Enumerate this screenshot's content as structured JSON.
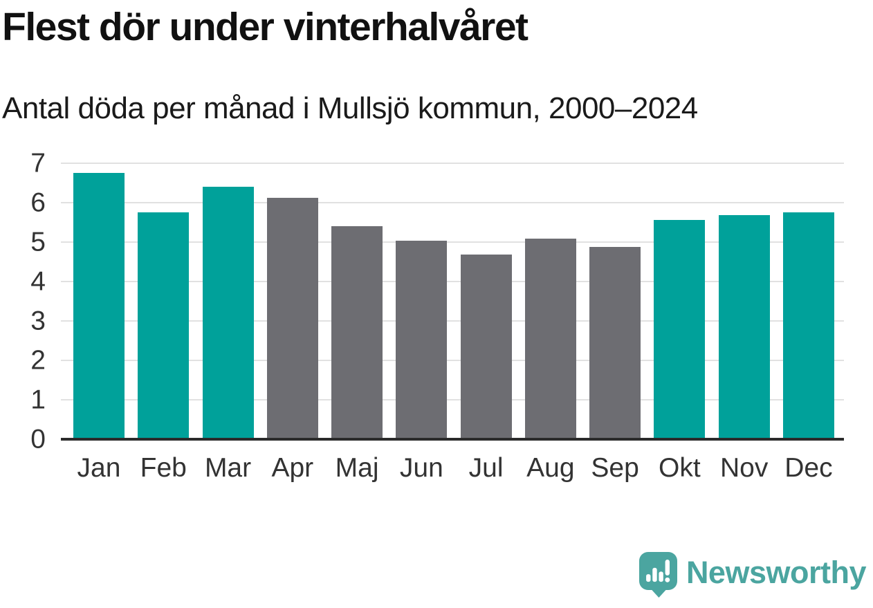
{
  "header": {
    "title": "Flest dör under vinterhalvåret",
    "subtitle": "Antal döda per månad i Mullsjö kommun, 2000–2024"
  },
  "chart_data": {
    "type": "bar",
    "title": "Flest dör under vinterhalvåret",
    "subtitle": "Antal döda per månad i Mullsjö kommun, 2000–2024",
    "categories": [
      "Jan",
      "Feb",
      "Mar",
      "Apr",
      "Maj",
      "Jun",
      "Jul",
      "Aug",
      "Sep",
      "Okt",
      "Nov",
      "Dec"
    ],
    "values": [
      6.76,
      5.76,
      6.4,
      6.12,
      5.4,
      5.04,
      4.68,
      5.08,
      4.88,
      5.56,
      5.68,
      5.76
    ],
    "bar_colors": [
      "#00A19A",
      "#00A19A",
      "#00A19A",
      "#6D6D72",
      "#6D6D72",
      "#6D6D72",
      "#6D6D72",
      "#6D6D72",
      "#6D6D72",
      "#00A19A",
      "#00A19A",
      "#00A19A"
    ],
    "xlabel": "",
    "ylabel": "",
    "ylim": [
      0,
      7
    ],
    "yticks": [
      0,
      1,
      2,
      3,
      4,
      5,
      6,
      7
    ],
    "grid": true,
    "legend": false
  },
  "colors": {
    "highlight": "#00A19A",
    "muted": "#6D6D72",
    "axis_line": "#2b2b2b",
    "grid_line": "#e1e1e1",
    "tick_text": "#333333",
    "brand": "#4BA5A0"
  },
  "footer": {
    "brand": "Newsworthy"
  }
}
